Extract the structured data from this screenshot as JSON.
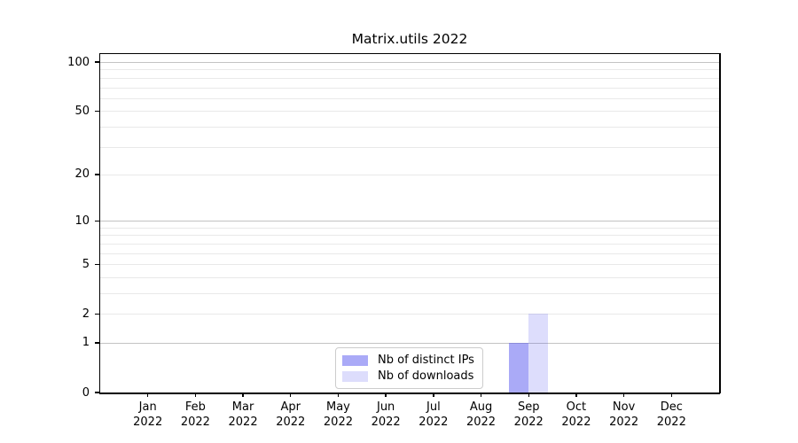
{
  "chart_data": {
    "type": "bar",
    "title": "Matrix.utils 2022",
    "categories": [
      "Jan\n2022",
      "Feb\n2022",
      "Mar\n2022",
      "Apr\n2022",
      "May\n2022",
      "Jun\n2022",
      "Jul\n2022",
      "Aug\n2022",
      "Sep\n2022",
      "Oct\n2022",
      "Nov\n2022",
      "Dec\n2022"
    ],
    "series": [
      {
        "name": "Nb of distinct IPs",
        "color": "rgba(85,85,240,0.5)",
        "values": [
          0,
          0,
          0,
          0,
          0,
          0,
          0,
          0,
          1,
          0,
          0,
          0
        ]
      },
      {
        "name": "Nb of downloads",
        "color": "rgba(85,85,240,0.2)",
        "values": [
          0,
          0,
          0,
          0,
          0,
          0,
          0,
          0,
          2,
          0,
          0,
          0
        ]
      }
    ],
    "xlabel": "",
    "ylabel": "",
    "yscale": "log1p",
    "ylim": [
      0,
      112
    ],
    "yticks": [
      0,
      1,
      2,
      5,
      10,
      20,
      50,
      100
    ],
    "y_major_gridlines": [
      1,
      10,
      100
    ],
    "y_minor_gridlines": [
      2,
      3,
      4,
      5,
      6,
      7,
      8,
      9,
      20,
      30,
      40,
      50,
      60,
      70,
      80,
      90
    ],
    "grid": true,
    "legend": {
      "position": "lower center",
      "entries": [
        "Nb of distinct IPs",
        "Nb of downloads"
      ]
    },
    "colors": {
      "background": "#ffffff",
      "spine": "#000000",
      "major_grid": "#c3c3c3",
      "minor_grid": "#e9e9e9",
      "text": "#000000"
    }
  }
}
